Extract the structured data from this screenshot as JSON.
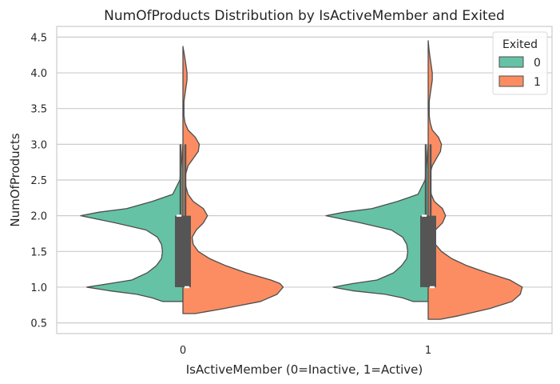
{
  "chart_data": {
    "type": "violin",
    "split": true,
    "title": "NumOfProducts Distribution by IsActiveMember and Exited",
    "xlabel": "IsActiveMember (0=Inactive, 1=Active)",
    "ylabel": "NumOfProducts",
    "categories": [
      "0",
      "1"
    ],
    "y_ticks": [
      "0.5",
      "1.0",
      "1.5",
      "2.0",
      "2.5",
      "3.0",
      "3.5",
      "4.0",
      "4.5"
    ],
    "y_tick_values": [
      0.5,
      1.0,
      1.5,
      2.0,
      2.5,
      3.0,
      3.5,
      4.0,
      4.5
    ],
    "ylim": [
      0.35,
      4.65
    ],
    "grid": "horizontal",
    "legend": {
      "title": "Exited",
      "placement": "top-right",
      "entries": [
        {
          "label": "0",
          "color": "#66c2a5"
        },
        {
          "label": "1",
          "color": "#fc8d62"
        }
      ]
    },
    "series": [
      {
        "name": "0",
        "side": "left",
        "color": "#66c2a5",
        "violins": [
          {
            "category": "0",
            "range": [
              0.8,
              3.0
            ],
            "profile": [
              [
                0.8,
                0.2
              ],
              [
                0.85,
                0.3
              ],
              [
                0.9,
                0.45
              ],
              [
                0.95,
                0.72
              ],
              [
                1.0,
                0.94
              ],
              [
                1.05,
                0.72
              ],
              [
                1.1,
                0.5
              ],
              [
                1.2,
                0.35
              ],
              [
                1.3,
                0.26
              ],
              [
                1.4,
                0.21
              ],
              [
                1.5,
                0.2
              ],
              [
                1.6,
                0.21
              ],
              [
                1.7,
                0.25
              ],
              [
                1.8,
                0.36
              ],
              [
                1.9,
                0.66
              ],
              [
                2.0,
                1.0
              ],
              [
                2.05,
                0.82
              ],
              [
                2.1,
                0.55
              ],
              [
                2.2,
                0.3
              ],
              [
                2.3,
                0.1
              ],
              [
                2.5,
                0.03
              ],
              [
                2.8,
                0.01
              ],
              [
                3.0,
                0.0
              ]
            ]
          },
          {
            "category": "1",
            "range": [
              0.8,
              3.0
            ],
            "profile": [
              [
                0.8,
                0.15
              ],
              [
                0.85,
                0.25
              ],
              [
                0.9,
                0.42
              ],
              [
                0.95,
                0.74
              ],
              [
                1.0,
                0.93
              ],
              [
                1.05,
                0.74
              ],
              [
                1.1,
                0.5
              ],
              [
                1.2,
                0.34
              ],
              [
                1.3,
                0.26
              ],
              [
                1.4,
                0.21
              ],
              [
                1.5,
                0.2
              ],
              [
                1.6,
                0.21
              ],
              [
                1.7,
                0.25
              ],
              [
                1.8,
                0.36
              ],
              [
                1.9,
                0.66
              ],
              [
                2.0,
                1.0
              ],
              [
                2.05,
                0.82
              ],
              [
                2.1,
                0.55
              ],
              [
                2.2,
                0.3
              ],
              [
                2.3,
                0.1
              ],
              [
                2.5,
                0.03
              ],
              [
                2.8,
                0.01
              ],
              [
                3.0,
                0.0
              ]
            ]
          }
        ]
      },
      {
        "name": "1",
        "side": "right",
        "color": "#fc8d62",
        "violins": [
          {
            "category": "0",
            "range": [
              0.63,
              4.37
            ],
            "profile": [
              [
                0.63,
                0.12
              ],
              [
                0.7,
                0.4
              ],
              [
                0.8,
                0.76
              ],
              [
                0.9,
                0.92
              ],
              [
                1.0,
                0.98
              ],
              [
                1.05,
                0.95
              ],
              [
                1.1,
                0.86
              ],
              [
                1.2,
                0.62
              ],
              [
                1.3,
                0.42
              ],
              [
                1.4,
                0.26
              ],
              [
                1.5,
                0.15
              ],
              [
                1.6,
                0.1
              ],
              [
                1.7,
                0.09
              ],
              [
                1.8,
                0.13
              ],
              [
                1.9,
                0.2
              ],
              [
                2.0,
                0.24
              ],
              [
                2.1,
                0.2
              ],
              [
                2.2,
                0.1
              ],
              [
                2.3,
                0.05
              ],
              [
                2.4,
                0.03
              ],
              [
                2.5,
                0.02
              ],
              [
                2.6,
                0.03
              ],
              [
                2.7,
                0.05
              ],
              [
                2.8,
                0.1
              ],
              [
                2.9,
                0.15
              ],
              [
                3.0,
                0.16
              ],
              [
                3.1,
                0.12
              ],
              [
                3.2,
                0.05
              ],
              [
                3.3,
                0.02
              ],
              [
                3.4,
                0.01
              ],
              [
                3.5,
                0.01
              ],
              [
                3.6,
                0.01
              ],
              [
                3.7,
                0.02
              ],
              [
                3.8,
                0.03
              ],
              [
                3.9,
                0.04
              ],
              [
                4.0,
                0.04
              ],
              [
                4.1,
                0.03
              ],
              [
                4.2,
                0.02
              ],
              [
                4.37,
                0.0
              ]
            ]
          },
          {
            "category": "1",
            "range": [
              0.55,
              4.45
            ],
            "profile": [
              [
                0.55,
                0.12
              ],
              [
                0.6,
                0.3
              ],
              [
                0.7,
                0.6
              ],
              [
                0.8,
                0.82
              ],
              [
                0.9,
                0.9
              ],
              [
                1.0,
                0.92
              ],
              [
                1.1,
                0.8
              ],
              [
                1.2,
                0.58
              ],
              [
                1.3,
                0.38
              ],
              [
                1.4,
                0.23
              ],
              [
                1.5,
                0.13
              ],
              [
                1.6,
                0.07
              ],
              [
                1.7,
                0.05
              ],
              [
                1.8,
                0.07
              ],
              [
                1.9,
                0.14
              ],
              [
                2.0,
                0.17
              ],
              [
                2.1,
                0.14
              ],
              [
                2.2,
                0.06
              ],
              [
                2.3,
                0.03
              ],
              [
                2.4,
                0.02
              ],
              [
                2.5,
                0.02
              ],
              [
                2.6,
                0.02
              ],
              [
                2.7,
                0.04
              ],
              [
                2.8,
                0.08
              ],
              [
                2.9,
                0.12
              ],
              [
                3.0,
                0.13
              ],
              [
                3.1,
                0.1
              ],
              [
                3.2,
                0.04
              ],
              [
                3.3,
                0.02
              ],
              [
                3.4,
                0.01
              ],
              [
                3.5,
                0.01
              ],
              [
                3.6,
                0.01
              ],
              [
                3.7,
                0.02
              ],
              [
                3.8,
                0.03
              ],
              [
                3.9,
                0.04
              ],
              [
                4.0,
                0.04
              ],
              [
                4.1,
                0.03
              ],
              [
                4.2,
                0.02
              ],
              [
                4.3,
                0.01
              ],
              [
                4.45,
                0.0
              ]
            ]
          }
        ]
      }
    ],
    "boxes": [
      {
        "category": "0",
        "side": "left",
        "q1": 1.0,
        "median": 2.0,
        "q3": 2.0,
        "whisker_low": 1.0,
        "whisker_high": 3.0
      },
      {
        "category": "0",
        "side": "right",
        "q1": 1.0,
        "median": 1.0,
        "q3": 2.0,
        "whisker_low": 1.0,
        "whisker_high": 3.0
      },
      {
        "category": "1",
        "side": "left",
        "q1": 1.0,
        "median": 2.0,
        "q3": 2.0,
        "whisker_low": 1.0,
        "whisker_high": 3.0
      },
      {
        "category": "1",
        "side": "right",
        "q1": 1.0,
        "median": 1.0,
        "q3": 2.0,
        "whisker_low": 1.0,
        "whisker_high": 3.0
      }
    ]
  }
}
